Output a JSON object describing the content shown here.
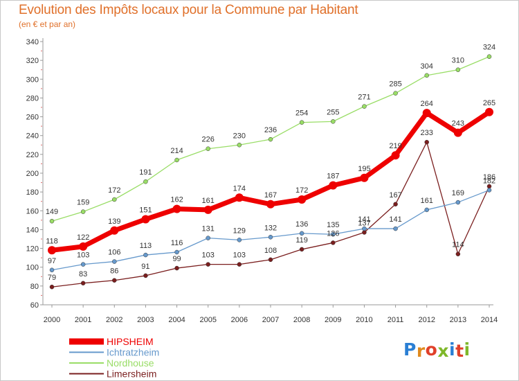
{
  "title": "Evolution des Impôts locaux pour la Commune par Habitant",
  "subtitle": "(en € et par an)",
  "logo": {
    "letters": [
      "P",
      "r",
      "o",
      "x",
      "i",
      "t",
      "i"
    ],
    "colors": [
      "#2a7fd4",
      "#e08a1e",
      "#e0402a",
      "#7fb82a",
      "#2a7fd4",
      "#e0402a",
      "#7fb82a"
    ]
  },
  "chart_data": {
    "type": "line",
    "title": "Evolution des Impôts locaux pour la Commune par Habitant",
    "subtitle": "(en € et par an)",
    "x": [
      "2000",
      "2001",
      "2002",
      "2003",
      "2004",
      "2005",
      "2006",
      "2007",
      "2008",
      "2009",
      "2010",
      "2011",
      "2012",
      "2013",
      "2014"
    ],
    "ylim": [
      60,
      340
    ],
    "yticks": [
      60,
      80,
      100,
      120,
      140,
      160,
      180,
      200,
      220,
      240,
      260,
      280,
      300,
      320,
      340
    ],
    "grid": false,
    "legend_position": "bottom-left",
    "series": [
      {
        "name": "Nordhouse",
        "color": "#99dd66",
        "values": [
          149,
          159,
          172,
          191,
          214,
          226,
          230,
          236,
          254,
          255,
          271,
          285,
          304,
          310,
          324
        ],
        "labels": [
          "149",
          "159",
          "172",
          "191",
          "214",
          "226",
          "230",
          "236",
          "254",
          "255",
          "271",
          "285",
          "304",
          "310",
          "324"
        ]
      },
      {
        "name": "Limersheim",
        "color": "#7a1e1e",
        "values": [
          79,
          83,
          86,
          91,
          99,
          103,
          103,
          108,
          119,
          126,
          137,
          167,
          233,
          114,
          186
        ],
        "labels": [
          "79",
          "83",
          "86",
          "91",
          "99",
          "103",
          "103",
          "108",
          "119",
          "126",
          "137",
          "167",
          "233",
          "114",
          "186"
        ]
      },
      {
        "name": "Ichtratzheim",
        "color": "#6699cc",
        "values": [
          97,
          103,
          106,
          113,
          116,
          131,
          129,
          132,
          136,
          135,
          141,
          141,
          161,
          169,
          182
        ],
        "labels": [
          "97",
          "103",
          "106",
          "113",
          "116",
          "131",
          "129",
          "132",
          "136",
          "135",
          "141",
          "141",
          "161",
          "169",
          "182"
        ]
      },
      {
        "name": "HIPSHEIM",
        "color": "#ee0000",
        "values": [
          118,
          122,
          139,
          151,
          162,
          161,
          174,
          167,
          172,
          187,
          195,
          219,
          264,
          243,
          265
        ],
        "labels": [
          "118",
          "122",
          "139",
          "151",
          "162",
          "161",
          "174",
          "167",
          "172",
          "187",
          "195",
          "219",
          "264",
          "243",
          "265"
        ]
      }
    ],
    "legend_order": [
      "HIPSHEIM",
      "Ichtratzheim",
      "Nordhouse",
      "Limersheim"
    ]
  }
}
